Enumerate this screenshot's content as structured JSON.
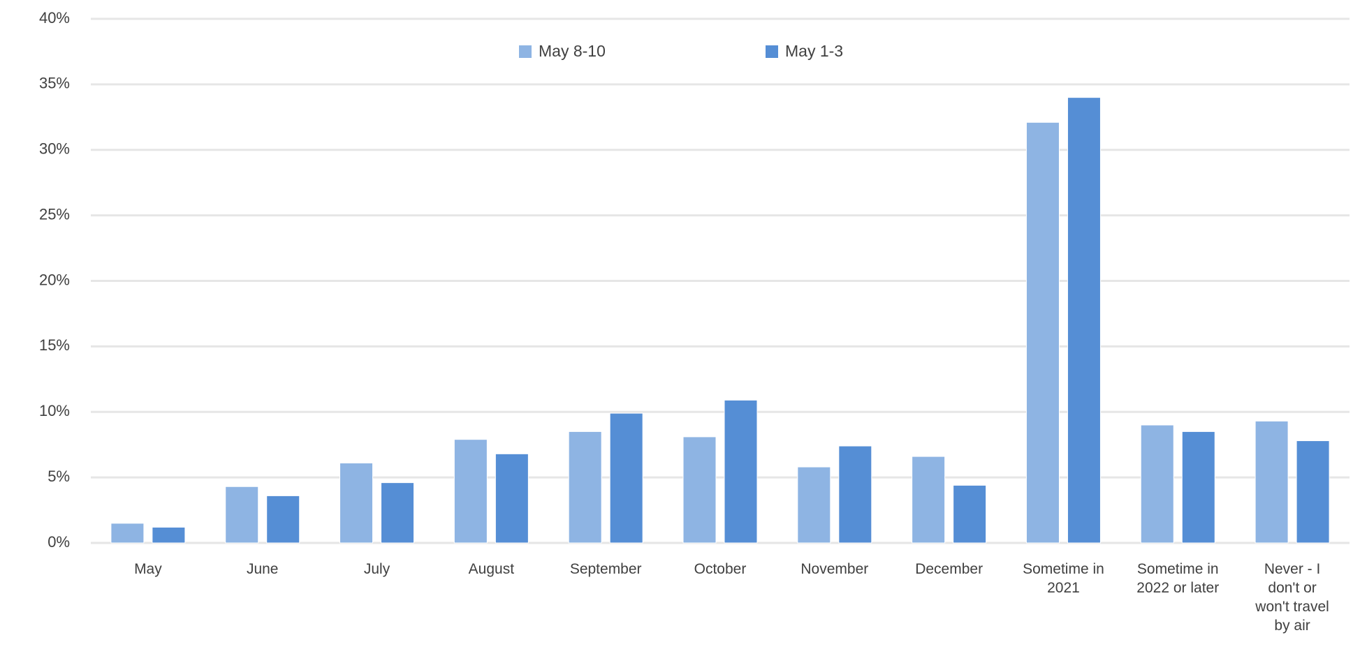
{
  "chart_data": {
    "type": "bar",
    "categories": [
      "May",
      "June",
      "July",
      "August",
      "September",
      "October",
      "November",
      "December",
      "Sometime in 2021",
      "Sometime in 2022 or later",
      "Never - I don't or won't travel by air"
    ],
    "series": [
      {
        "name": "May 8-10",
        "color": "#8eb4e3",
        "values": [
          1.5,
          4.3,
          6.1,
          7.9,
          8.5,
          8.1,
          5.8,
          6.6,
          32.1,
          9.0,
          9.3
        ]
      },
      {
        "name": "May 1-3",
        "color": "#558ed5",
        "values": [
          1.2,
          3.6,
          4.6,
          6.8,
          9.9,
          10.9,
          7.4,
          4.4,
          34.0,
          8.5,
          7.8
        ]
      }
    ],
    "ylim": [
      0,
      40
    ],
    "yticks": [
      {
        "value": 0,
        "label": "0%"
      },
      {
        "value": 5,
        "label": "5%"
      },
      {
        "value": 10,
        "label": "10%"
      },
      {
        "value": 15,
        "label": "15%"
      },
      {
        "value": 20,
        "label": "20%"
      },
      {
        "value": 25,
        "label": "25%"
      },
      {
        "value": 30,
        "label": "30%"
      },
      {
        "value": 35,
        "label": "35%"
      },
      {
        "value": 40,
        "label": "40%"
      }
    ],
    "grid": true,
    "legend": "top"
  }
}
